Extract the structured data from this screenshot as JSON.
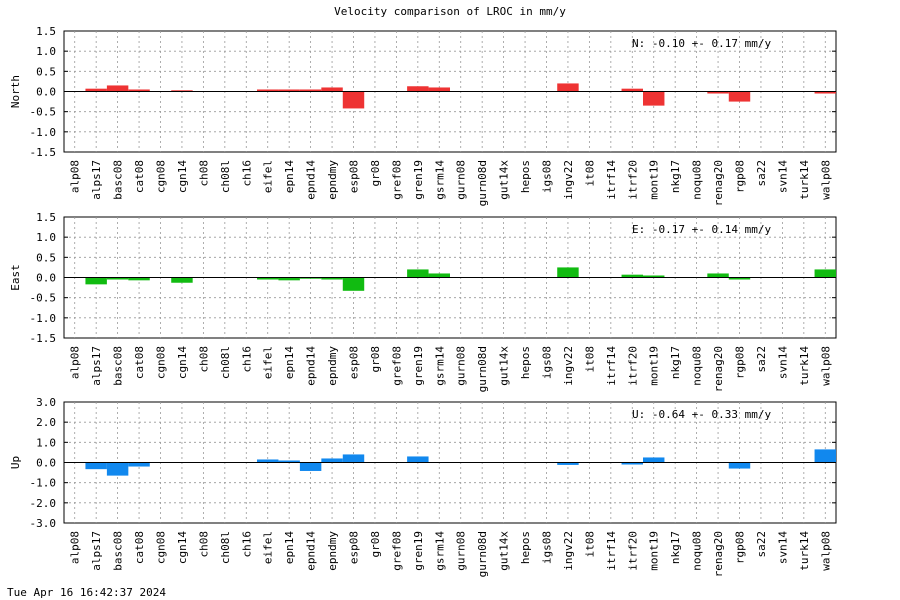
{
  "chart_data": {
    "type": "bar",
    "title": "Velocity comparison of LROC in mm/y",
    "categories": [
      "alp08",
      "alps17",
      "basc08",
      "cat08",
      "cgn08",
      "cgn14",
      "ch08",
      "ch08l",
      "ch16",
      "eifel",
      "epn14",
      "epnd14",
      "epndmy",
      "esp08",
      "gr08",
      "gref08",
      "gren19",
      "gsrm14",
      "gurn08",
      "gurn08d",
      "gut14x",
      "hepos",
      "igs08",
      "ingv22",
      "it08",
      "itrf14",
      "itrf20",
      "mont19",
      "nkg17",
      "noqu08",
      "renag20",
      "rgp08",
      "sa22",
      "svn14",
      "turk14",
      "walp08"
    ],
    "panels": [
      {
        "ylabel": "North",
        "ylim": [
          -1.5,
          1.5
        ],
        "yticks": [
          "1.5",
          "1.0",
          "0.5",
          "0.0",
          "-0.5",
          "-1.0",
          "-1.5"
        ],
        "ytick_values": [
          1.5,
          1.0,
          0.5,
          0.0,
          -0.5,
          -1.0,
          -1.5
        ],
        "color": "#ee3333",
        "annotation": "N:  -0.10 +-  0.17 mm/y",
        "values": [
          null,
          0.07,
          0.15,
          0.05,
          null,
          0.03,
          null,
          null,
          null,
          0.05,
          0.05,
          0.05,
          0.1,
          -0.42,
          null,
          null,
          0.13,
          0.1,
          null,
          null,
          null,
          null,
          null,
          0.2,
          null,
          null,
          0.07,
          -0.35,
          null,
          null,
          -0.05,
          -0.25,
          null,
          null,
          null,
          -0.05
        ]
      },
      {
        "ylabel": "East",
        "ylim": [
          -1.5,
          1.5
        ],
        "yticks": [
          "1.5",
          "1.0",
          "0.5",
          "0.0",
          "-0.5",
          "-1.0",
          "-1.5"
        ],
        "ytick_values": [
          1.5,
          1.0,
          0.5,
          0.0,
          -0.5,
          -1.0,
          -1.5
        ],
        "color": "#11bb11",
        "annotation": "E:  -0.17 +-  0.14 mm/y",
        "values": [
          null,
          -0.17,
          -0.05,
          -0.07,
          null,
          -0.13,
          null,
          null,
          null,
          -0.05,
          -0.07,
          -0.03,
          -0.05,
          -0.33,
          null,
          null,
          0.2,
          0.1,
          null,
          null,
          null,
          null,
          null,
          0.25,
          null,
          null,
          0.07,
          0.05,
          null,
          null,
          0.1,
          -0.05,
          null,
          null,
          null,
          0.2
        ]
      },
      {
        "ylabel": "Up",
        "ylim": [
          -3.0,
          3.0
        ],
        "yticks": [
          "3.0",
          "2.0",
          "1.0",
          "0.0",
          "-1.0",
          "-2.0",
          "-3.0"
        ],
        "ytick_values": [
          3.0,
          2.0,
          1.0,
          0.0,
          -1.0,
          -2.0,
          -3.0
        ],
        "color": "#1188ee",
        "annotation": "U:  -0.64 +-  0.33 mm/y",
        "values": [
          null,
          -0.33,
          -0.65,
          -0.2,
          null,
          null,
          null,
          null,
          null,
          0.15,
          0.1,
          -0.42,
          0.2,
          0.4,
          null,
          null,
          0.3,
          null,
          null,
          null,
          null,
          null,
          null,
          -0.12,
          null,
          null,
          -0.1,
          0.25,
          null,
          null,
          null,
          -0.3,
          null,
          null,
          null,
          0.65
        ]
      }
    ],
    "grid": true
  },
  "footer": {
    "timestamp": "Tue Apr 16 16:42:37 2024"
  }
}
